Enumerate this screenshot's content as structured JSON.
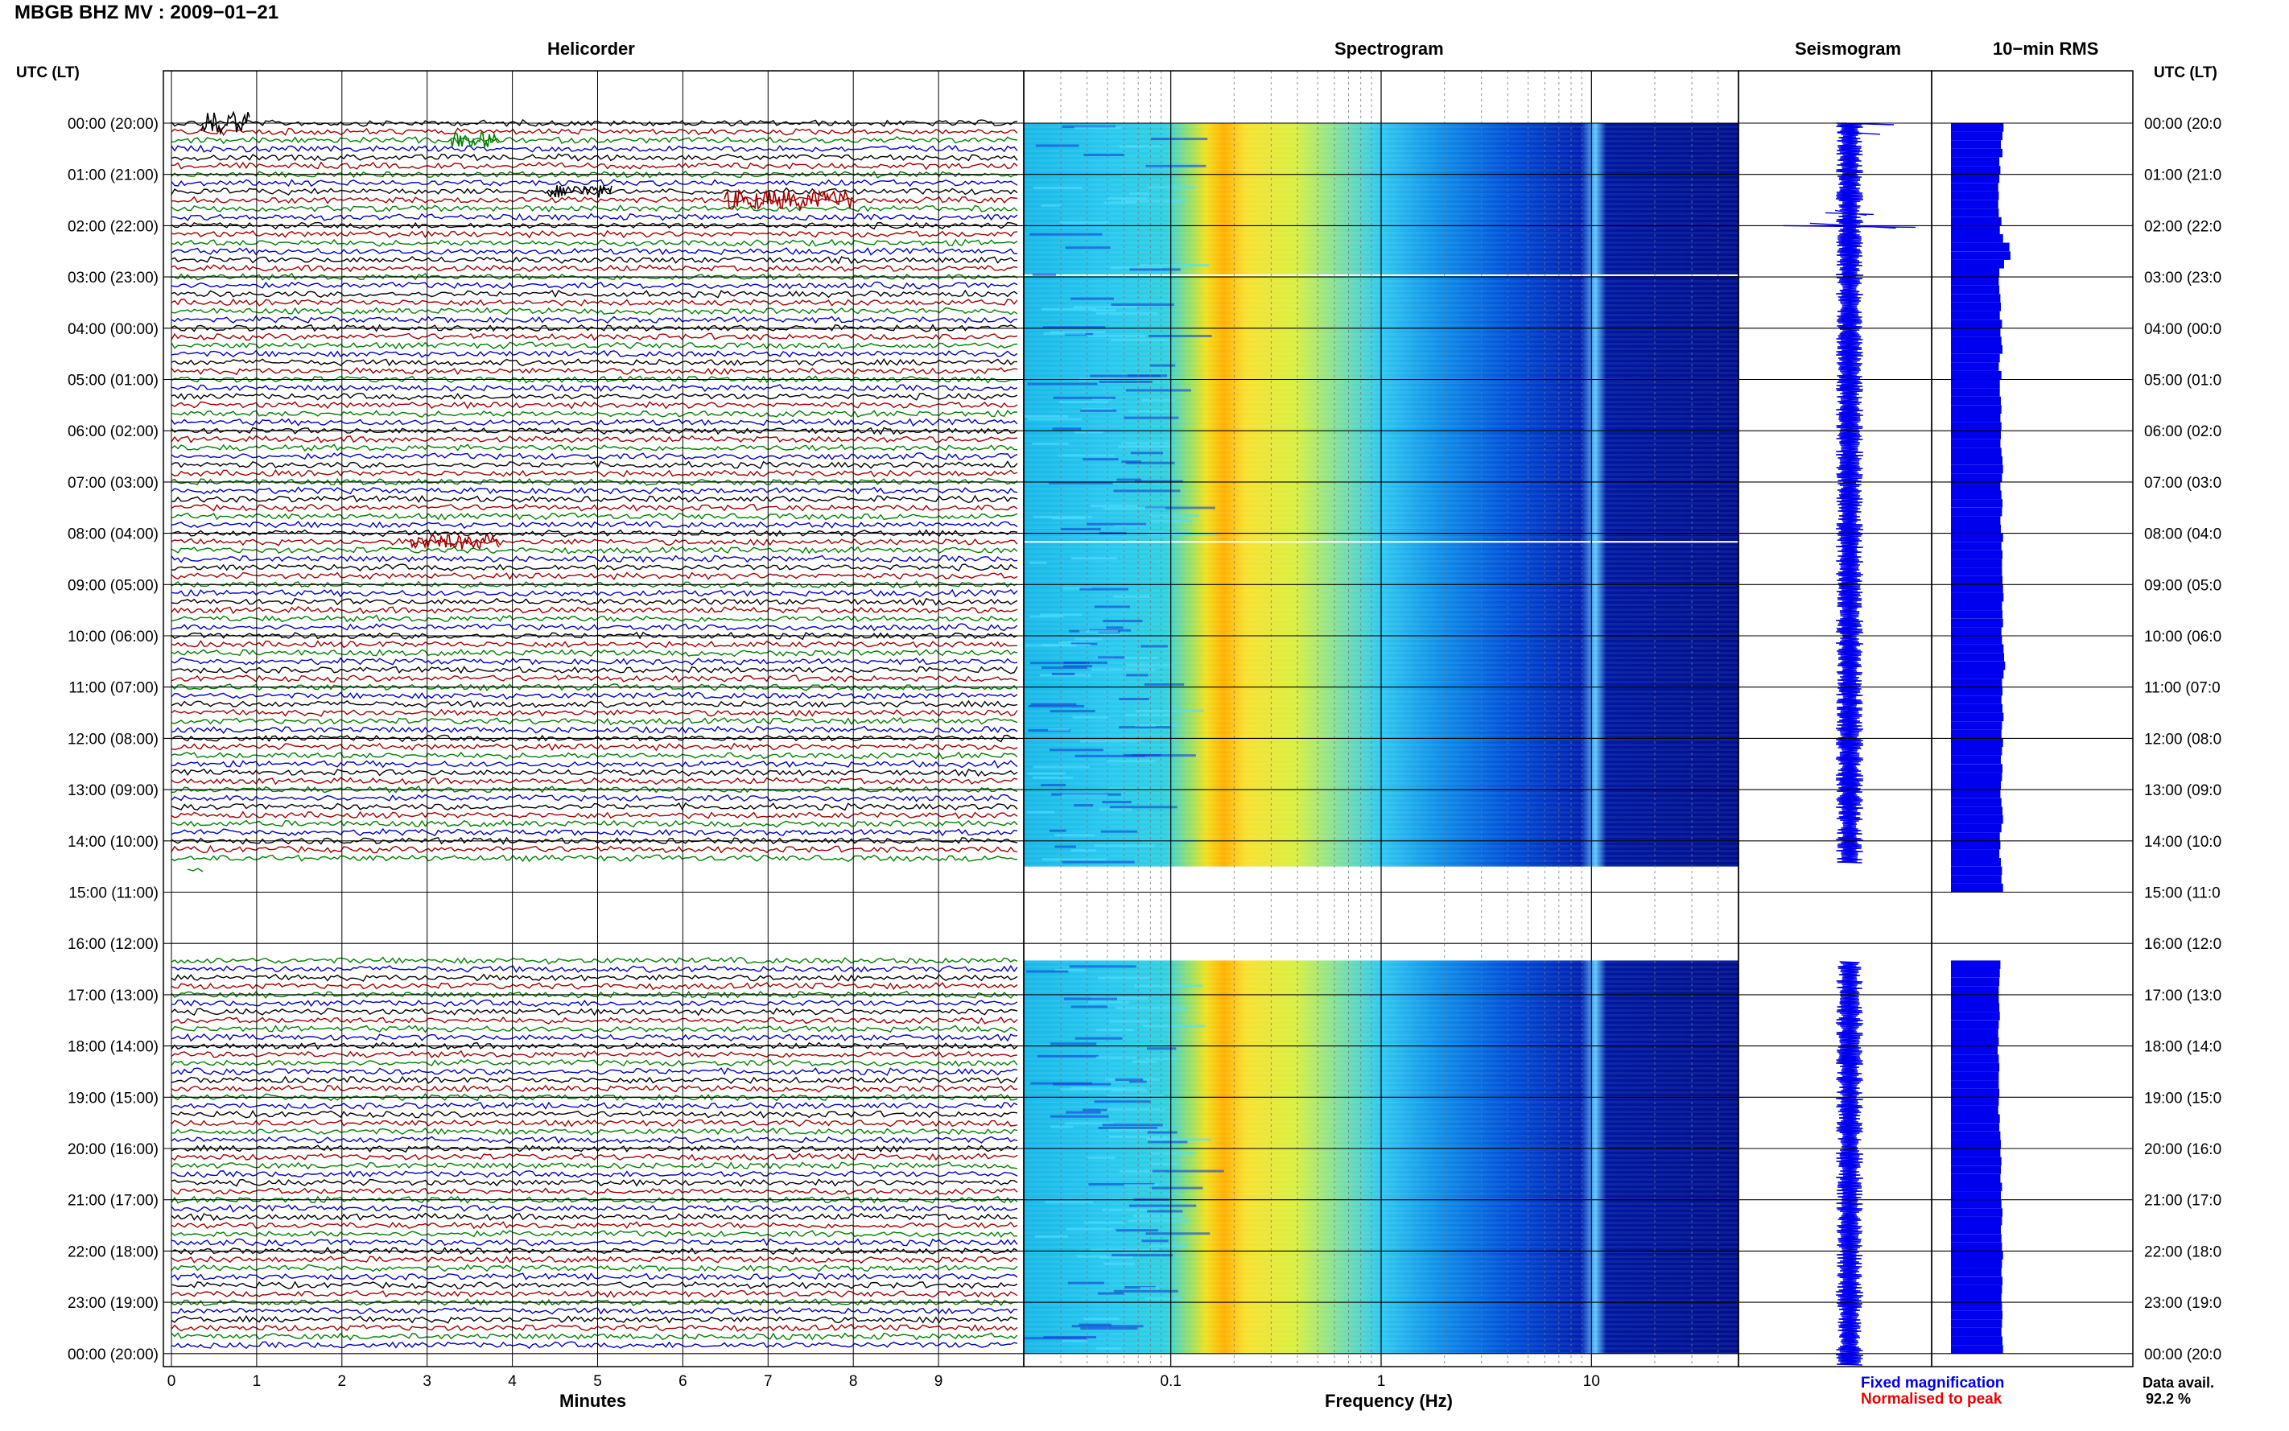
{
  "page": {
    "title": "MBGB BHZ MV : 2009−01−21"
  },
  "panels": {
    "helicorder": {
      "title": "Helicorder"
    },
    "spectrogram": {
      "title": "Spectrogram"
    },
    "seismogram": {
      "title": "Seismogram"
    },
    "rms": {
      "title": "10−min RMS"
    }
  },
  "axes": {
    "utc_label": "UTC (LT)",
    "minutes_label": "Minutes",
    "frequency_label": "Frequency (Hz)"
  },
  "legend": {
    "fixed": "Fixed magnification",
    "normalised": "Normalised to peak"
  },
  "footer": {
    "data_avail_label": "Data avail.",
    "data_avail_value": "92.2 %"
  },
  "colors": {
    "trace_cycle": [
      "#000000",
      "#a00000",
      "#008000",
      "#0000c0"
    ],
    "fill_blue": "#0000ee",
    "spectrogram_low": "#000090",
    "spectrogram_high": "#ff3000"
  },
  "chart_data": [
    {
      "type": "line",
      "name": "helicorder",
      "title": "Helicorder",
      "xlabel": "Minutes",
      "xlim": [
        0,
        10
      ],
      "x_ticks": [
        0,
        1,
        2,
        3,
        4,
        5,
        6,
        7,
        8,
        9
      ],
      "y_ticks": [
        "00:00 (20:00)",
        "01:00 (21:00)",
        "02:00 (22:00)",
        "03:00 (23:00)",
        "04:00 (00:00)",
        "05:00 (01:00)",
        "06:00 (02:00)",
        "07:00 (03:00)",
        "08:00 (04:00)",
        "09:00 (05:00)",
        "10:00 (06:00)",
        "11:00 (07:00)",
        "12:00 (08:00)",
        "13:00 (09:00)",
        "14:00 (10:00)",
        "15:00 (11:00)",
        "16:00 (12:00)",
        "17:00 (13:00)",
        "18:00 (14:00)",
        "19:00 (15:00)",
        "20:00 (16:00)",
        "21:00 (17:00)",
        "22:00 (18:00)",
        "23:00 (19:00)",
        "00:00 (20:00)"
      ],
      "y_ticks_right": [
        "00:00 (20:0",
        "01:00 (21:0",
        "02:00 (22:0",
        "03:00 (23:0",
        "04:00 (00:0",
        "05:00 (01:0",
        "06:00 (02:0",
        "07:00 (03:0",
        "08:00 (04:0",
        "09:00 (05:0",
        "10:00 (06:0",
        "11:00 (07:0",
        "12:00 (08:0",
        "13:00 (09:0",
        "14:00 (10:0",
        "15:00 (11:0",
        "16:00 (12:0",
        "17:00 (13:0",
        "18:00 (14:0",
        "19:00 (15:0",
        "20:00 (16:0",
        "21:00 (17:0",
        "22:00 (18:0",
        "23:00 (19:0",
        "00:00 (20:0"
      ],
      "lines_per_hour": 6,
      "data_gaps_utc": [
        [
          "14:30",
          "16:20"
        ]
      ]
    },
    {
      "type": "heatmap",
      "name": "spectrogram",
      "title": "Spectrogram",
      "xlabel": "Frequency (Hz)",
      "x_scale": "log",
      "xlim": [
        0.02,
        50
      ],
      "x_tick_labels": [
        "0.1",
        "1",
        "10"
      ],
      "x_tick_values": [
        0.1,
        1,
        10
      ],
      "peak_band_hz": [
        0.15,
        0.3
      ],
      "narrow_line_hz": 11.5,
      "gaps_utc": [
        [
          "02:57",
          "02:59"
        ],
        [
          "08:09",
          "08:11"
        ],
        [
          "14:30",
          "16:20"
        ]
      ]
    },
    {
      "type": "line",
      "name": "seismogram",
      "title": "Seismogram",
      "spikes_utc": [
        "01:45",
        "02:00"
      ]
    },
    {
      "type": "bar",
      "name": "rms",
      "title": "10−min RMS",
      "orientation": "horizontal",
      "interval_minutes": 10,
      "relative_values_day": [
        0.99,
        0.97,
        0.94,
        0.97,
        0.91,
        0.93,
        0.91,
        0.89,
        0.9,
        0.89,
        0.9,
        0.95,
        0.92,
        0.98,
        1.1,
        1.12,
        1.0,
        0.91,
        0.9,
        0.91,
        0.93,
        0.94,
        0.92,
        0.96,
        0.93,
        0.95,
        0.97,
        0.92,
        0.9,
        0.95,
        0.92,
        0.92,
        0.94,
        0.95,
        0.93,
        0.95,
        0.94,
        0.93,
        0.95,
        0.97,
        0.98,
        0.96,
        0.93,
        0.95,
        0.97,
        0.96,
        0.93,
        0.94,
        0.98,
        0.95,
        0.97,
        0.96,
        0.96,
        0.97,
        0.98,
        0.99,
        0.96,
        0.97,
        0.98,
        0.95,
        0.96,
        0.99,
        1.0,
        1.02,
        0.99,
        0.96,
        0.97,
        0.95,
        0.97,
        0.99,
        0.96,
        0.95,
        0.98,
        0.96,
        0.94,
        0.97,
        0.96,
        0.94,
        0.93,
        0.95,
        0.97,
        0.98,
        0.95,
        0.92,
        0.93,
        0.91,
        0.94,
        0.96,
        0.95,
        0.98
      ],
      "relative_values_night": [
        0.93,
        0.92,
        0.91,
        0.9,
        0.9,
        0.91,
        0.92,
        0.9,
        0.89,
        0.9,
        0.88,
        0.9,
        0.91,
        0.9,
        0.9,
        0.91,
        0.9,
        0.89,
        0.92,
        0.91,
        0.93,
        0.94,
        0.93,
        0.95,
        0.94,
        0.93,
        0.96,
        0.94,
        0.95,
        0.97,
        0.96,
        0.94,
        0.95,
        0.96,
        0.98,
        0.96,
        0.95,
        0.97,
        0.96,
        0.95,
        0.96,
        0.97,
        0.96,
        0.95,
        0.97,
        0.98
      ],
      "data_gaps_utc": [
        [
          "14:40",
          "16:20"
        ]
      ]
    }
  ]
}
